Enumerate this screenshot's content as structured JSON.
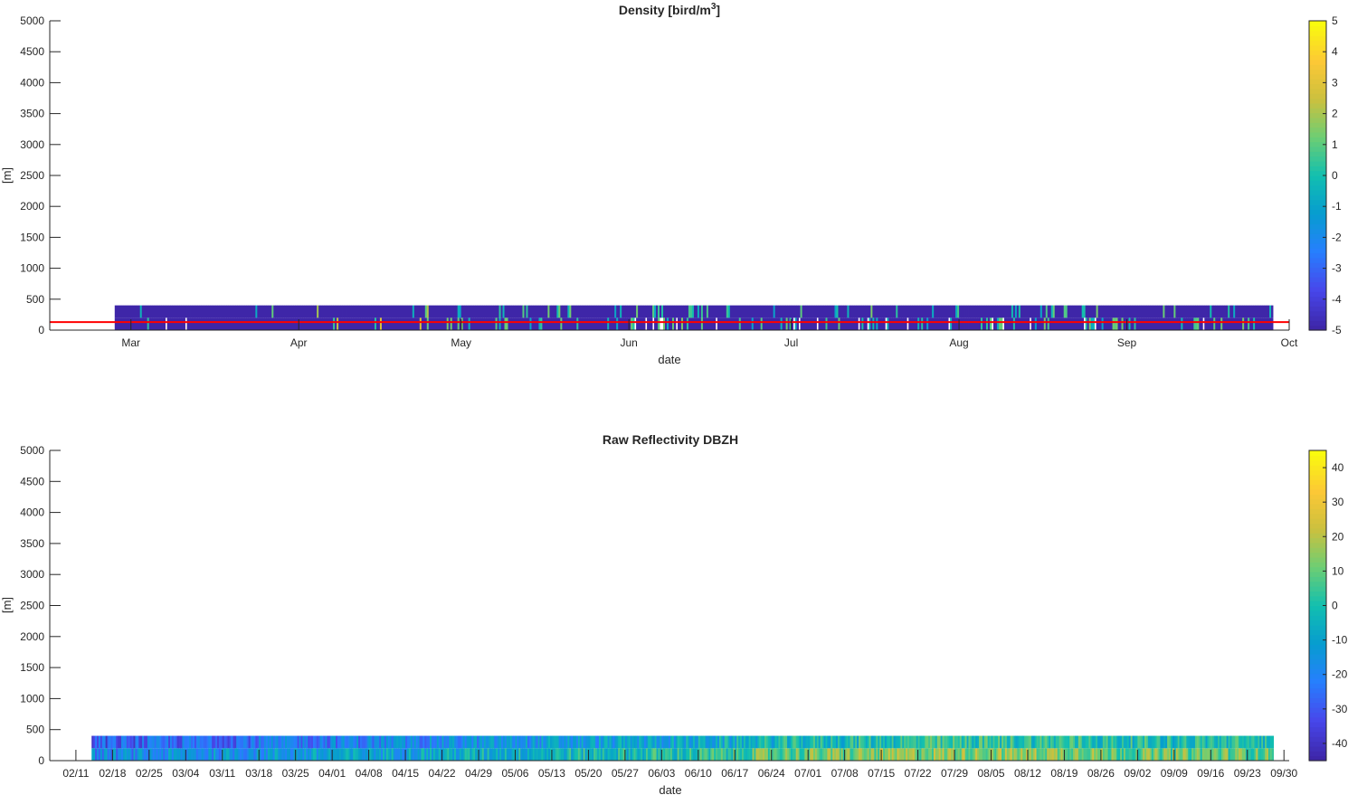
{
  "chart_data": [
    {
      "type": "heatmap",
      "title": "Density [bird/m",
      "title_superscript": "3",
      "title_suffix": "]",
      "xlabel": "date",
      "ylabel": "[m]",
      "xlim": [
        "2023-02-14",
        "2023-10-01"
      ],
      "ylim": [
        0,
        5000
      ],
      "yticks": [
        0,
        500,
        1000,
        1500,
        2000,
        2500,
        3000,
        3500,
        4000,
        4500,
        5000
      ],
      "xticks": [
        {
          "date": "2023-03-01",
          "label": "Mar"
        },
        {
          "date": "2023-04-01",
          "label": "Apr"
        },
        {
          "date": "2023-05-01",
          "label": "May"
        },
        {
          "date": "2023-06-01",
          "label": "Jun"
        },
        {
          "date": "2023-07-01",
          "label": "Jul"
        },
        {
          "date": "2023-08-01",
          "label": "Aug"
        },
        {
          "date": "2023-09-01",
          "label": "Sep"
        },
        {
          "date": "2023-10-01",
          "label": "Oct"
        }
      ],
      "data_range": {
        "start": "2023-02-26",
        "end": "2023-09-28",
        "altitude_top": 400
      },
      "reference_line": {
        "altitude": 130,
        "color": "#ff0000"
      },
      "colorbar": {
        "min": -5,
        "max": 5,
        "ticks": [
          -5,
          -4,
          -3,
          -2,
          -1,
          0,
          1,
          2,
          3,
          4,
          5
        ]
      },
      "colormap": "parula",
      "background_value": -5
    },
    {
      "type": "heatmap",
      "title": "Raw Reflectivity DBZH",
      "xlabel": "date",
      "ylabel": "[m]",
      "xlim": [
        "2023-02-06",
        "2023-10-01"
      ],
      "ylim": [
        0,
        5000
      ],
      "yticks": [
        0,
        500,
        1000,
        1500,
        2000,
        2500,
        3000,
        3500,
        4000,
        4500,
        5000
      ],
      "xticks": [
        "02/11",
        "02/18",
        "02/25",
        "03/04",
        "03/11",
        "03/18",
        "03/25",
        "04/01",
        "04/08",
        "04/15",
        "04/22",
        "04/29",
        "05/06",
        "05/13",
        "05/20",
        "05/27",
        "06/03",
        "06/10",
        "06/17",
        "06/24",
        "07/01",
        "07/08",
        "07/15",
        "07/22",
        "07/29",
        "08/05",
        "08/12",
        "08/19",
        "08/26",
        "09/02",
        "09/09",
        "09/16",
        "09/23",
        "09/30"
      ],
      "data_range": {
        "start": "2023-02-14",
        "end": "2023-09-28",
        "altitude_top": 400
      },
      "colorbar": {
        "min": -45,
        "max": 45,
        "ticks": [
          -40,
          -30,
          -20,
          -10,
          0,
          10,
          20,
          30,
          40
        ]
      },
      "colormap": "parula"
    }
  ]
}
